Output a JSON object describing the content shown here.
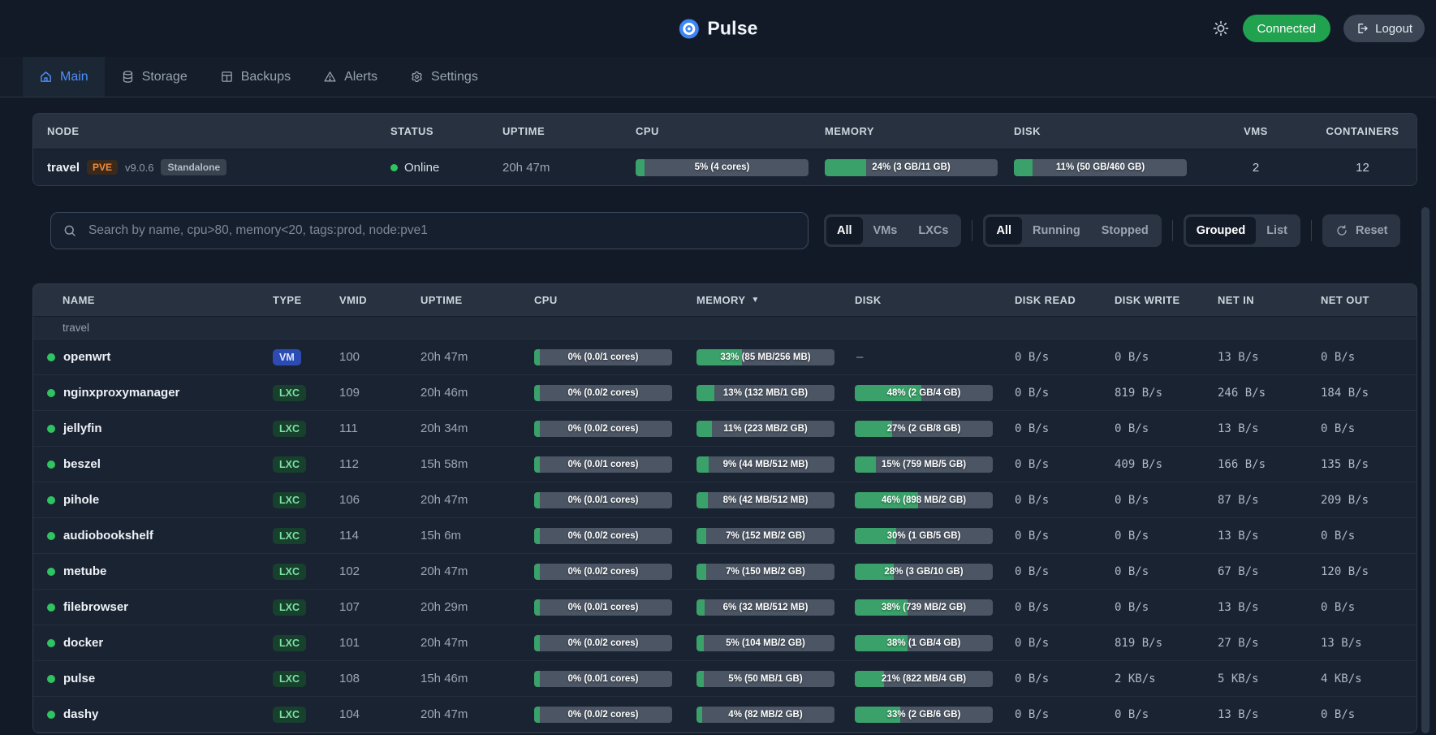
{
  "header": {
    "app_name": "Pulse",
    "connected_label": "Connected",
    "logout_label": "Logout"
  },
  "tabs": [
    {
      "label": "Main",
      "icon": "house-icon",
      "active": true
    },
    {
      "label": "Storage",
      "icon": "database-icon",
      "active": false
    },
    {
      "label": "Backups",
      "icon": "backups-icon",
      "active": false
    },
    {
      "label": "Alerts",
      "icon": "alert-triangle-icon",
      "active": false
    },
    {
      "label": "Settings",
      "icon": "gear-icon",
      "active": false
    }
  ],
  "node_table": {
    "columns": [
      "NODE",
      "STATUS",
      "UPTIME",
      "CPU",
      "MEMORY",
      "DISK",
      "VMS",
      "CONTAINERS"
    ],
    "node": {
      "name": "travel",
      "pve_label": "PVE",
      "version": "v9.0.6",
      "mode_label": "Standalone",
      "status": "Online",
      "uptime": "20h 47m",
      "cpu": {
        "percent": 5,
        "label": "5% (4 cores)"
      },
      "memory": {
        "percent": 24,
        "label": "24% (3 GB/11 GB)"
      },
      "disk": {
        "percent": 11,
        "label": "11% (50 GB/460 GB)"
      },
      "vms": "2",
      "containers": "12"
    }
  },
  "filters": {
    "search_placeholder": "Search by name, cpu>80, memory<20, tags:prod, node:pve1",
    "type_group": {
      "options": [
        "All",
        "VMs",
        "LXCs"
      ],
      "active": "All"
    },
    "status_group": {
      "options": [
        "All",
        "Running",
        "Stopped"
      ],
      "active": "All"
    },
    "view_group": {
      "options": [
        "Grouped",
        "List"
      ],
      "active": "Grouped"
    },
    "reset_label": "Reset"
  },
  "guest_table": {
    "columns": [
      {
        "label": "NAME"
      },
      {
        "label": "TYPE"
      },
      {
        "label": "VMID"
      },
      {
        "label": "UPTIME"
      },
      {
        "label": "CPU"
      },
      {
        "label": "MEMORY",
        "sorted": "desc"
      },
      {
        "label": "DISK"
      },
      {
        "label": "DISK READ"
      },
      {
        "label": "DISK WRITE"
      },
      {
        "label": "NET IN"
      },
      {
        "label": "NET OUT"
      }
    ],
    "group_label": "travel",
    "rows": [
      {
        "name": "openwrt",
        "status": "running",
        "type": "VM",
        "vmid": "100",
        "uptime": "20h 47m",
        "cpu": {
          "percent": 0,
          "label": "0% (0.0/1 cores)"
        },
        "memory": {
          "percent": 33,
          "label": "33% (85 MB/256 MB)"
        },
        "disk": null,
        "disk_read": "0 B/s",
        "disk_write": "0 B/s",
        "net_in": "13 B/s",
        "net_out": "0 B/s"
      },
      {
        "name": "nginxproxymanager",
        "status": "running",
        "type": "LXC",
        "vmid": "109",
        "uptime": "20h 46m",
        "cpu": {
          "percent": 0,
          "label": "0% (0.0/2 cores)"
        },
        "memory": {
          "percent": 13,
          "label": "13% (132 MB/1 GB)"
        },
        "disk": {
          "percent": 48,
          "label": "48% (2 GB/4 GB)"
        },
        "disk_read": "0 B/s",
        "disk_write": "819 B/s",
        "net_in": "246 B/s",
        "net_out": "184 B/s"
      },
      {
        "name": "jellyfin",
        "status": "running",
        "type": "LXC",
        "vmid": "111",
        "uptime": "20h 34m",
        "cpu": {
          "percent": 0,
          "label": "0% (0.0/2 cores)"
        },
        "memory": {
          "percent": 11,
          "label": "11% (223 MB/2 GB)"
        },
        "disk": {
          "percent": 27,
          "label": "27% (2 GB/8 GB)"
        },
        "disk_read": "0 B/s",
        "disk_write": "0 B/s",
        "net_in": "13 B/s",
        "net_out": "0 B/s"
      },
      {
        "name": "beszel",
        "status": "running",
        "type": "LXC",
        "vmid": "112",
        "uptime": "15h 58m",
        "cpu": {
          "percent": 0,
          "label": "0% (0.0/1 cores)"
        },
        "memory": {
          "percent": 9,
          "label": "9% (44 MB/512 MB)"
        },
        "disk": {
          "percent": 15,
          "label": "15% (759 MB/5 GB)"
        },
        "disk_read": "0 B/s",
        "disk_write": "409 B/s",
        "net_in": "166 B/s",
        "net_out": "135 B/s"
      },
      {
        "name": "pihole",
        "status": "running",
        "type": "LXC",
        "vmid": "106",
        "uptime": "20h 47m",
        "cpu": {
          "percent": 0,
          "label": "0% (0.0/1 cores)"
        },
        "memory": {
          "percent": 8,
          "label": "8% (42 MB/512 MB)"
        },
        "disk": {
          "percent": 46,
          "label": "46% (898 MB/2 GB)"
        },
        "disk_read": "0 B/s",
        "disk_write": "0 B/s",
        "net_in": "87 B/s",
        "net_out": "209 B/s"
      },
      {
        "name": "audiobookshelf",
        "status": "running",
        "type": "LXC",
        "vmid": "114",
        "uptime": "15h 6m",
        "cpu": {
          "percent": 0,
          "label": "0% (0.0/2 cores)"
        },
        "memory": {
          "percent": 7,
          "label": "7% (152 MB/2 GB)"
        },
        "disk": {
          "percent": 30,
          "label": "30% (1 GB/5 GB)"
        },
        "disk_read": "0 B/s",
        "disk_write": "0 B/s",
        "net_in": "13 B/s",
        "net_out": "0 B/s"
      },
      {
        "name": "metube",
        "status": "running",
        "type": "LXC",
        "vmid": "102",
        "uptime": "20h 47m",
        "cpu": {
          "percent": 0,
          "label": "0% (0.0/2 cores)"
        },
        "memory": {
          "percent": 7,
          "label": "7% (150 MB/2 GB)"
        },
        "disk": {
          "percent": 28,
          "label": "28% (3 GB/10 GB)"
        },
        "disk_read": "0 B/s",
        "disk_write": "0 B/s",
        "net_in": "67 B/s",
        "net_out": "120 B/s"
      },
      {
        "name": "filebrowser",
        "status": "running",
        "type": "LXC",
        "vmid": "107",
        "uptime": "20h 29m",
        "cpu": {
          "percent": 0,
          "label": "0% (0.0/1 cores)"
        },
        "memory": {
          "percent": 6,
          "label": "6% (32 MB/512 MB)"
        },
        "disk": {
          "percent": 38,
          "label": "38% (739 MB/2 GB)"
        },
        "disk_read": "0 B/s",
        "disk_write": "0 B/s",
        "net_in": "13 B/s",
        "net_out": "0 B/s"
      },
      {
        "name": "docker",
        "status": "running",
        "type": "LXC",
        "vmid": "101",
        "uptime": "20h 47m",
        "cpu": {
          "percent": 0,
          "label": "0% (0.0/2 cores)"
        },
        "memory": {
          "percent": 5,
          "label": "5% (104 MB/2 GB)"
        },
        "disk": {
          "percent": 38,
          "label": "38% (1 GB/4 GB)"
        },
        "disk_read": "0 B/s",
        "disk_write": "819 B/s",
        "net_in": "27 B/s",
        "net_out": "13 B/s"
      },
      {
        "name": "pulse",
        "status": "running",
        "type": "LXC",
        "vmid": "108",
        "uptime": "15h 46m",
        "cpu": {
          "percent": 0,
          "label": "0% (0.0/1 cores)"
        },
        "memory": {
          "percent": 5,
          "label": "5% (50 MB/1 GB)"
        },
        "disk": {
          "percent": 21,
          "label": "21% (822 MB/4 GB)"
        },
        "disk_read": "0 B/s",
        "disk_write": "2 KB/s",
        "net_in": "5 KB/s",
        "net_out": "4 KB/s"
      },
      {
        "name": "dashy",
        "status": "running",
        "type": "LXC",
        "vmid": "104",
        "uptime": "20h 47m",
        "cpu": {
          "percent": 0,
          "label": "0% (0.0/2 cores)"
        },
        "memory": {
          "percent": 4,
          "label": "4% (82 MB/2 GB)"
        },
        "disk": {
          "percent": 33,
          "label": "33% (2 GB/6 GB)"
        },
        "disk_read": "0 B/s",
        "disk_write": "0 B/s",
        "net_in": "13 B/s",
        "net_out": "0 B/s"
      }
    ]
  },
  "colors": {
    "accent_blue": "#4f8ef7",
    "bar_green": "#39a169",
    "status_green": "#2fc45f",
    "connected_green": "#21a24f"
  }
}
